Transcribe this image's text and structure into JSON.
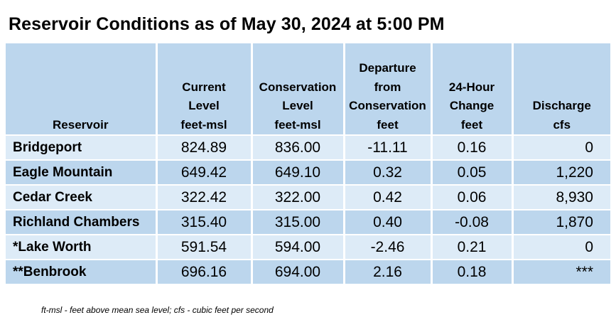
{
  "title": "Reservoir Conditions as of May 30, 2024 at 5:00 PM",
  "columns": [
    {
      "lines": [
        "Reservoir"
      ]
    },
    {
      "lines": [
        "Current",
        "Level",
        "feet-msl"
      ]
    },
    {
      "lines": [
        "Conservation",
        "Level",
        "feet-msl"
      ]
    },
    {
      "lines": [
        "Departure",
        "from",
        "Conservation",
        "feet"
      ]
    },
    {
      "lines": [
        "24-Hour",
        "Change",
        "feet"
      ]
    },
    {
      "lines": [
        "Discharge",
        "cfs"
      ]
    }
  ],
  "rows": [
    {
      "reservoir": "Bridgeport",
      "current": "824.89",
      "conservation": "836.00",
      "departure": "-11.11",
      "change": "0.16",
      "discharge": "0"
    },
    {
      "reservoir": "Eagle Mountain",
      "current": "649.42",
      "conservation": "649.10",
      "departure": "0.32",
      "change": "0.05",
      "discharge": "1,220"
    },
    {
      "reservoir": "Cedar Creek",
      "current": "322.42",
      "conservation": "322.00",
      "departure": "0.42",
      "change": "0.06",
      "discharge": "8,930"
    },
    {
      "reservoir": "Richland Chambers",
      "current": "315.40",
      "conservation": "315.00",
      "departure": "0.40",
      "change": "-0.08",
      "discharge": "1,870"
    },
    {
      "reservoir": "*Lake Worth",
      "current": "591.54",
      "conservation": "594.00",
      "departure": "-2.46",
      "change": "0.21",
      "discharge": "0"
    },
    {
      "reservoir": "**Benbrook",
      "current": "696.16",
      "conservation": "694.00",
      "departure": "2.16",
      "change": "0.18",
      "discharge": "***"
    }
  ],
  "footnote": "ft-msl - feet above mean sea level; cfs - cubic feet per second",
  "colors": {
    "header_bg": "#bcd6ed",
    "row_light": "#ddebf7",
    "row_dark": "#bcd6ed"
  }
}
